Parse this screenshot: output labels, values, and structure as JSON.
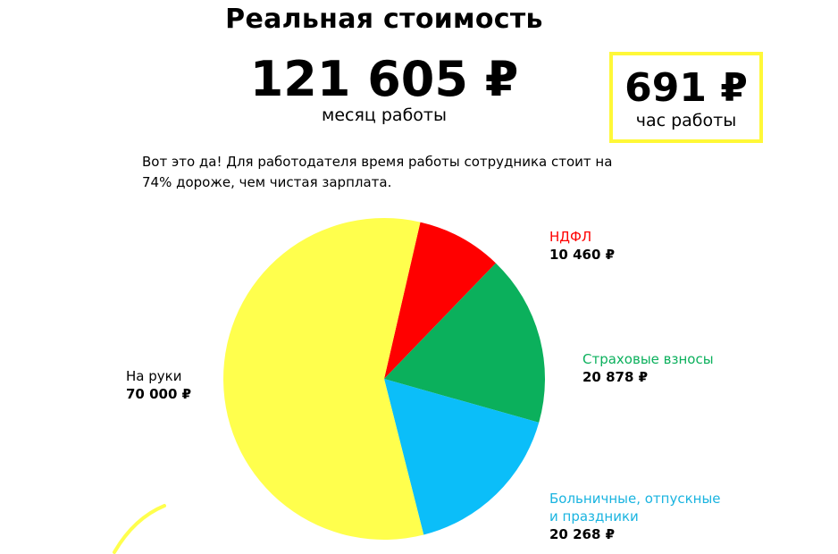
{
  "header": {
    "title": "Реальная стоимость",
    "monthly_amount": "121 605 ₽",
    "monthly_caption": "месяц работы",
    "hourly_amount": "691 ₽",
    "hourly_caption": "час работы"
  },
  "note": "Вот это да! Для работодателя время работы сотрудника стоит на 74% дороже, чем чистая зарплата.",
  "legend": {
    "ndfl": {
      "label": "НДФЛ",
      "amount": "10 460 ₽"
    },
    "insurance": {
      "label": "Страховые взносы",
      "amount": "20 878 ₽"
    },
    "vacation": {
      "label": "Больничные, отпускные и праздники",
      "amount": "20 268 ₽"
    },
    "net": {
      "label": "На руки",
      "amount": "70 000 ₽"
    }
  },
  "chart_data": {
    "type": "pie",
    "categories": [
      "НДФЛ",
      "Страховые взносы",
      "Больничные, отпускные и праздники",
      "На руки"
    ],
    "values": [
      10460,
      20878,
      20268,
      70000
    ],
    "colors": [
      "#ff0000",
      "#0bb05c",
      "#0bbef9",
      "#ffff4d"
    ]
  }
}
